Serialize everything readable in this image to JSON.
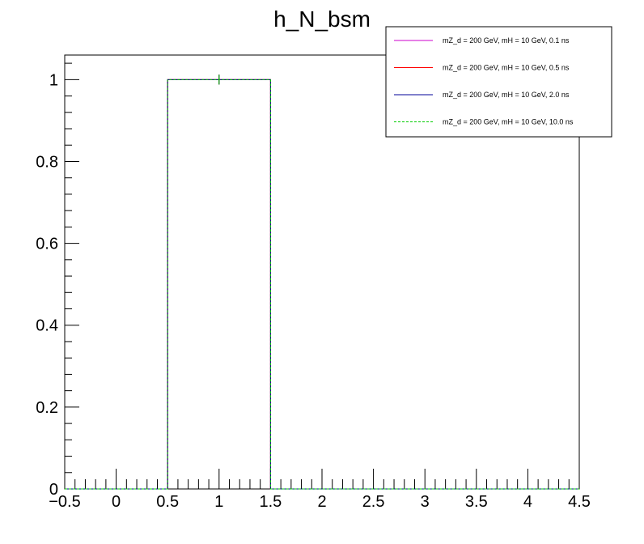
{
  "chart_data": {
    "type": "histogram",
    "title": "h_N_bsm",
    "xlabel": "",
    "ylabel": "",
    "xlim": [
      -0.5,
      4.5
    ],
    "ylim": [
      0,
      1.06
    ],
    "x_ticks": [
      -0.5,
      0,
      0.5,
      1,
      1.5,
      2,
      2.5,
      3,
      3.5,
      4,
      4.5
    ],
    "x_tick_labels": [
      "−0.5",
      "0",
      "0.5",
      "1",
      "1.5",
      "2",
      "2.5",
      "3",
      "3.5",
      "4",
      "4.5"
    ],
    "y_ticks": [
      0,
      0.2,
      0.4,
      0.6,
      0.8,
      1
    ],
    "y_tick_labels": [
      "0",
      "0.2",
      "0.4",
      "0.6",
      "0.8",
      "1"
    ],
    "bin_edges": [
      -0.5,
      0.5,
      1.5,
      2.5,
      3.5,
      4.5
    ],
    "series": [
      {
        "name": "mZ_d = 200 GeV, mH = 10 GeV, 0.1 ns",
        "color": "#cc00cc",
        "dash": "solid",
        "values": [
          0,
          1,
          0,
          0,
          0
        ],
        "errors": [
          0,
          0.012,
          0,
          0,
          0
        ]
      },
      {
        "name": "mZ_d = 200 GeV, mH = 10 GeV, 0.5 ns",
        "color": "#ff0000",
        "dash": "solid",
        "values": [
          0,
          1,
          0,
          0,
          0
        ],
        "errors": [
          0,
          0.012,
          0,
          0,
          0
        ]
      },
      {
        "name": "mZ_d = 200 GeV, mH = 10 GeV, 2.0 ns",
        "color": "#000099",
        "dash": "solid",
        "values": [
          0,
          1,
          0,
          0,
          0
        ],
        "errors": [
          0,
          0.012,
          0,
          0,
          0
        ]
      },
      {
        "name": "mZ_d = 200 GeV, mH = 10 GeV, 10.0 ns",
        "color": "#00cc00",
        "dash": "dashed",
        "values": [
          0,
          1,
          0,
          0,
          0
        ],
        "errors": [
          0,
          0.012,
          0,
          0,
          0
        ]
      }
    ],
    "legend_position": "top-right",
    "grid": false
  }
}
